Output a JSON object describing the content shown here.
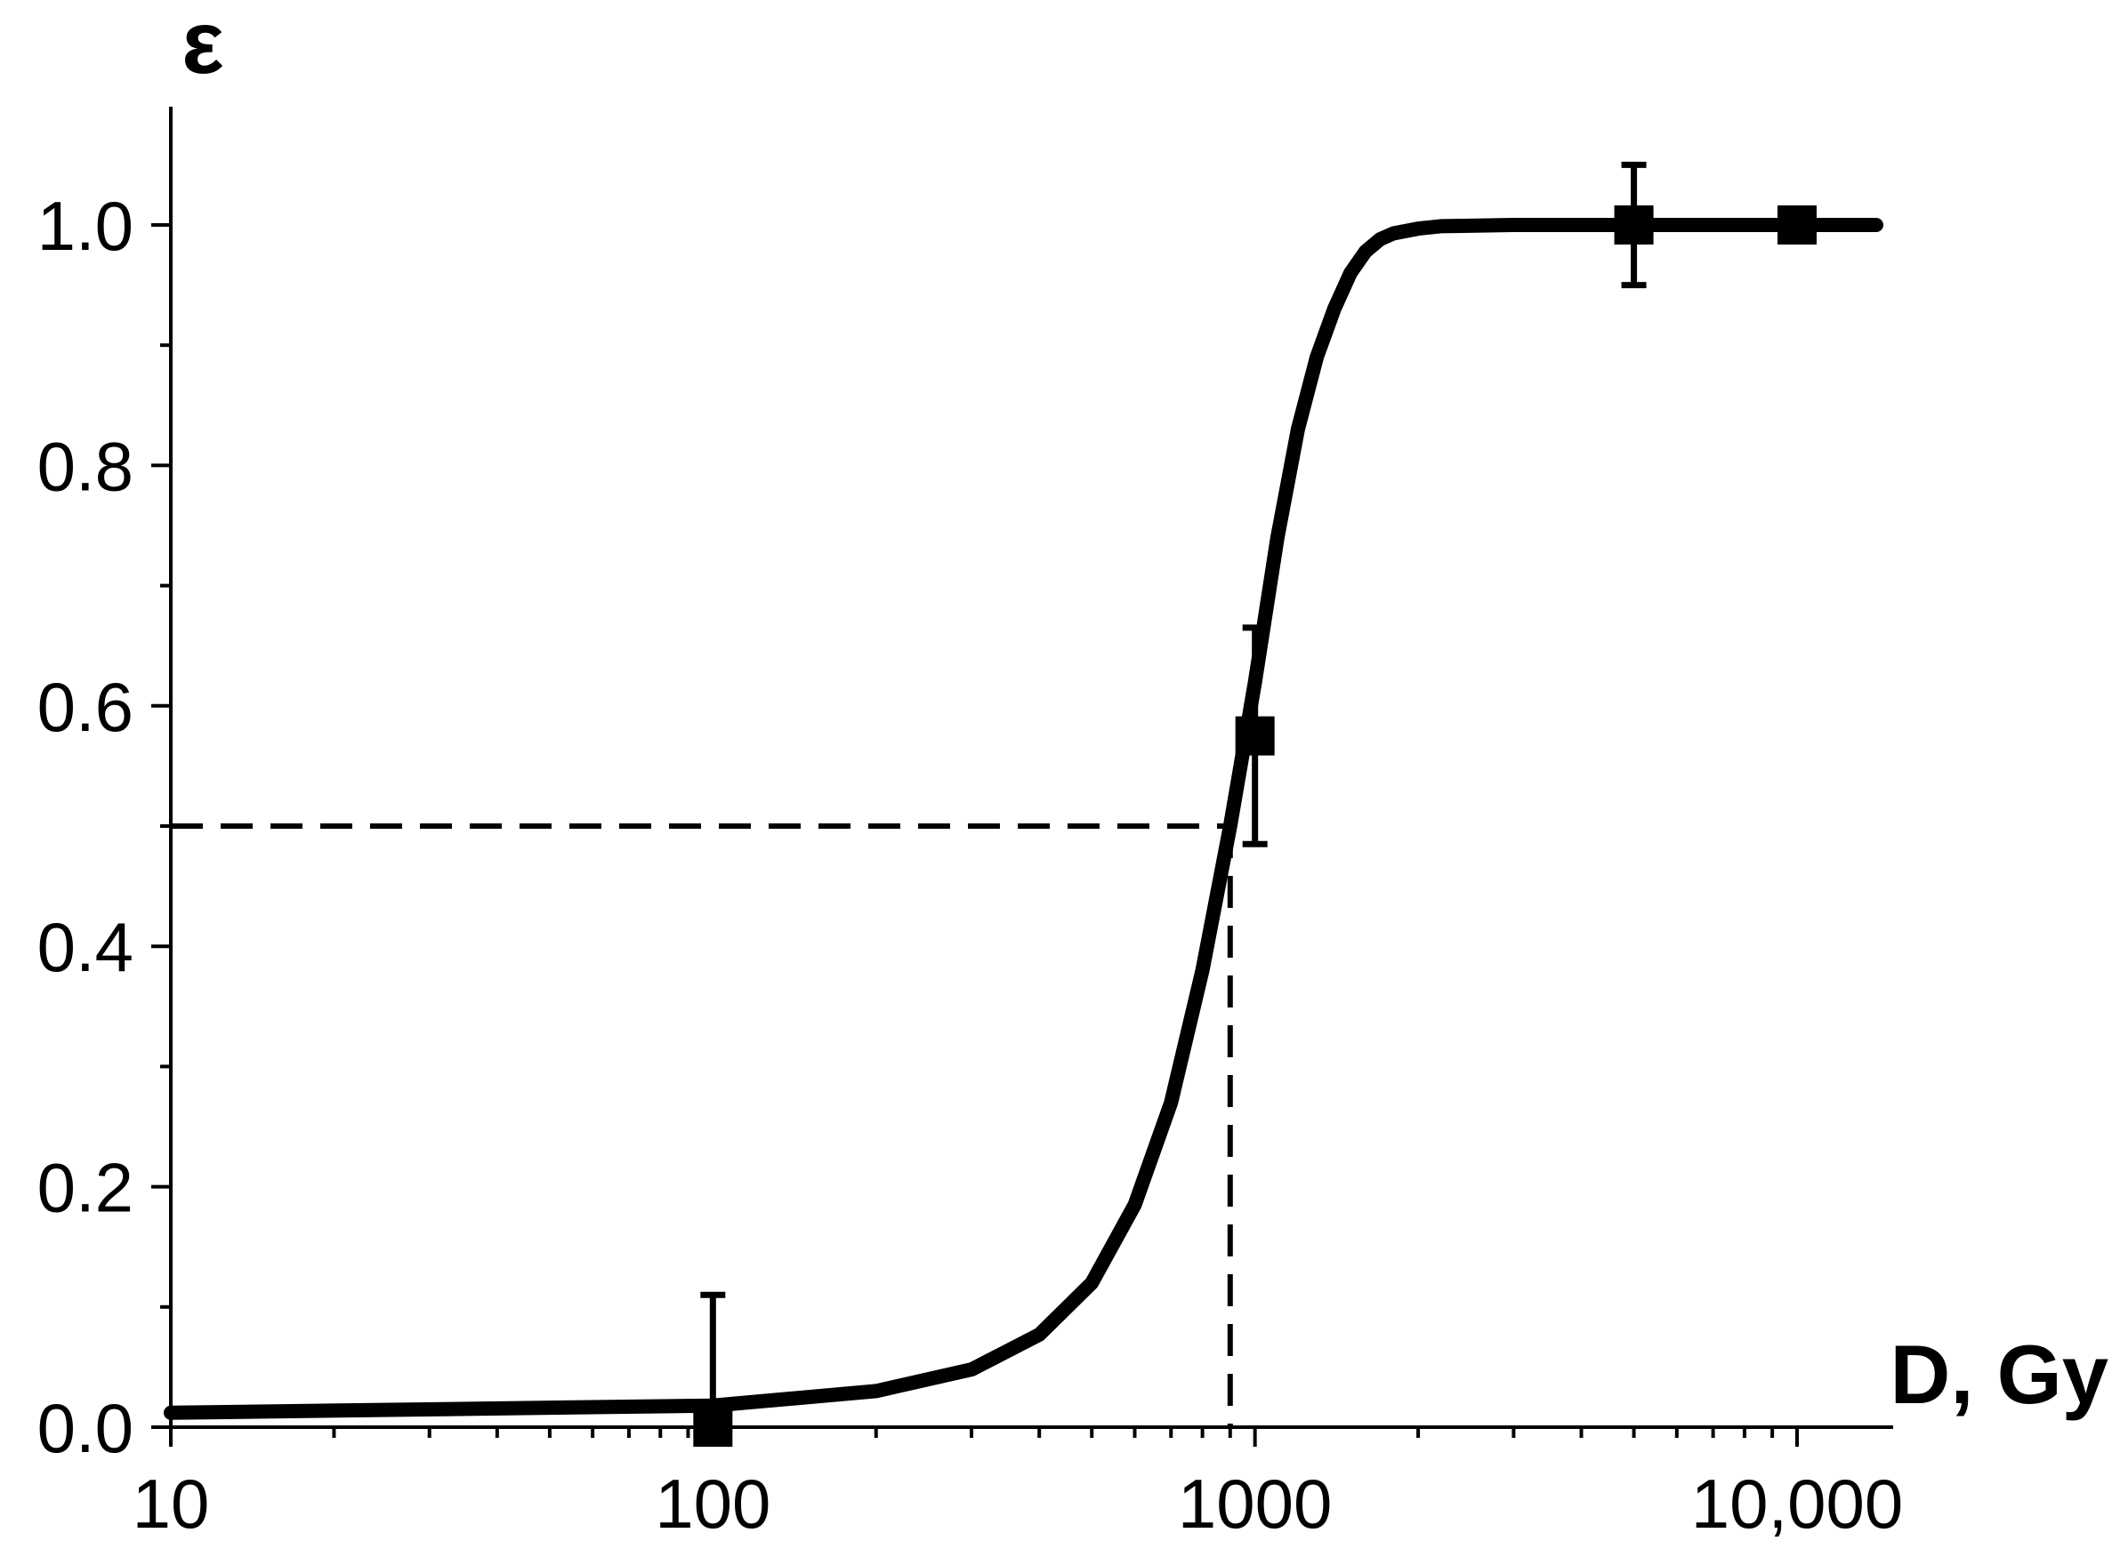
{
  "chart_data": {
    "type": "scatter",
    "xlabel": "D, Gy",
    "ylabel": "ε",
    "x_scale": "log",
    "xlim": [
      10,
      15000
    ],
    "ylim": [
      0,
      1.1
    ],
    "x_ticks": [
      10,
      100,
      1000,
      10000
    ],
    "x_tick_labels": [
      "10",
      "100",
      "1000",
      "10,000"
    ],
    "y_ticks": [
      0.0,
      0.2,
      0.4,
      0.6,
      0.8,
      1.0
    ],
    "y_tick_labels": [
      "0.0",
      "0.2",
      "0.4",
      "0.6",
      "0.8",
      "1.0"
    ],
    "grid": false,
    "series": [
      {
        "kind": "points",
        "marker": "square",
        "points": [
          {
            "x": 100,
            "y": 0.0,
            "err_plus": 0.11,
            "err_minus": 0
          },
          {
            "x": 1000,
            "y": 0.575,
            "err_plus": 0.09,
            "err_minus": 0.09
          },
          {
            "x": 5000,
            "y": 1.0,
            "err_plus": 0.05,
            "err_minus": 0.05
          },
          {
            "x": 10000,
            "y": 1.0,
            "err_plus": 0,
            "err_minus": 0
          }
        ]
      },
      {
        "kind": "fit-curve",
        "x": [
          10,
          100,
          200,
          300,
          400,
          500,
          600,
          700,
          800,
          900,
          1000,
          1100,
          1200,
          1300,
          1400,
          1500,
          1600,
          1700,
          1800,
          2000,
          2200,
          3000,
          5000,
          10000,
          14000
        ],
        "y": [
          0.012,
          0.018,
          0.03,
          0.048,
          0.077,
          0.12,
          0.185,
          0.27,
          0.38,
          0.5,
          0.62,
          0.74,
          0.83,
          0.89,
          0.93,
          0.96,
          0.978,
          0.988,
          0.993,
          0.997,
          0.999,
          1.0,
          1.0,
          1.0,
          1.0
        ]
      }
    ],
    "reference_lines": {
      "x": 900,
      "y": 0.5,
      "style": "dashed"
    }
  }
}
